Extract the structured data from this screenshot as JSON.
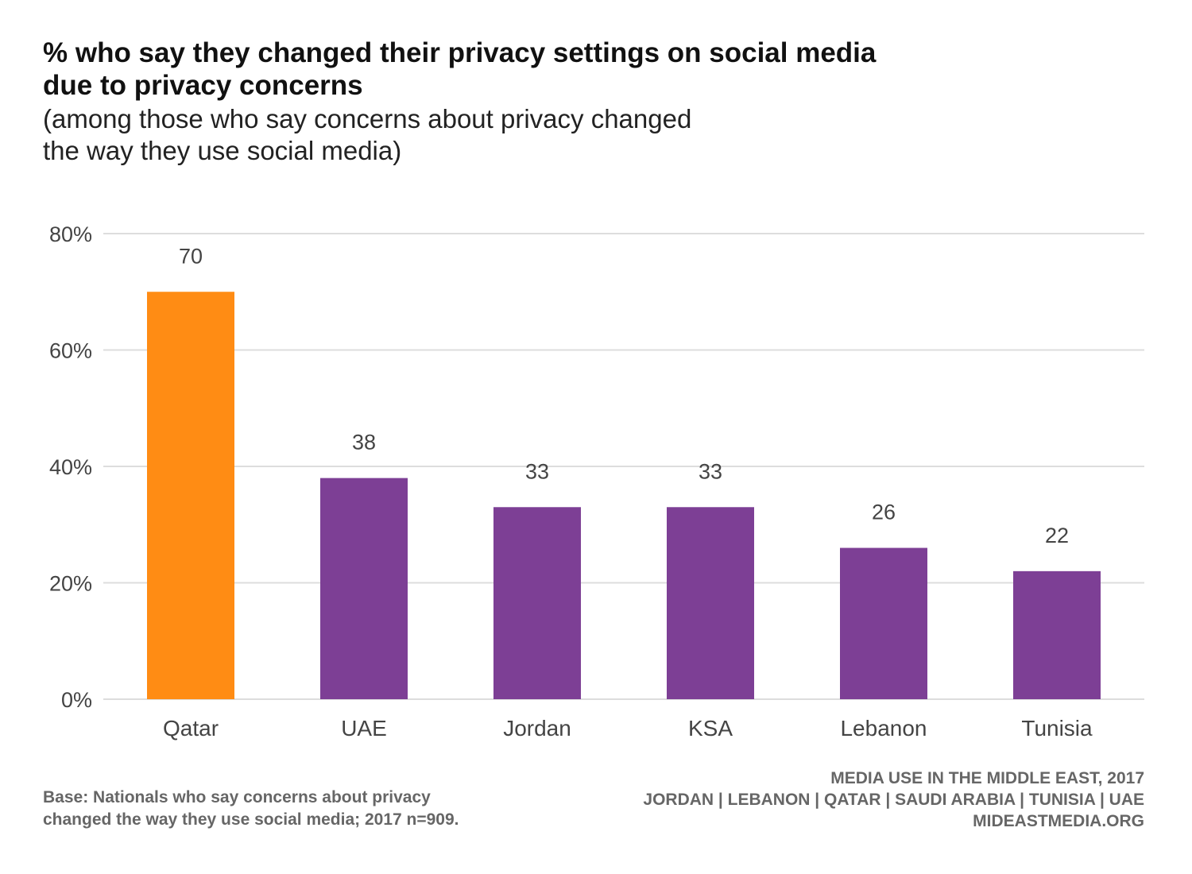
{
  "header": {
    "title_lines": [
      "% who say they changed their privacy settings on social media",
      "due to privacy concerns"
    ],
    "subtitle_lines": [
      "(among those who say concerns about privacy changed",
      "the way they use social media)"
    ]
  },
  "chart_data": {
    "type": "bar",
    "categories": [
      "Qatar",
      "UAE",
      "Jordan",
      "KSA",
      "Lebanon",
      "Tunisia"
    ],
    "values": [
      70,
      38,
      33,
      33,
      26,
      22
    ],
    "data_labels": [
      "70",
      "38",
      "33",
      "33",
      "26",
      "22"
    ],
    "ylim": [
      0,
      80
    ],
    "yticks": [
      0,
      20,
      40,
      60,
      80
    ],
    "ytick_labels": [
      "0%",
      "20%",
      "40%",
      "60%",
      "80%"
    ],
    "grid": true,
    "bar_colors": [
      "#FF8C14",
      "#7D3F95",
      "#7D3F95",
      "#7D3F95",
      "#7D3F95",
      "#7D3F95"
    ],
    "grid_color": "#DDDDDD"
  },
  "footer": {
    "base_lines": [
      "Base: Nationals who say concerns about privacy",
      "changed the way they use social media; 2017 n=909."
    ],
    "source_lines": [
      "MEDIA USE IN THE MIDDLE EAST, 2017",
      "JORDAN | LEBANON | QATAR | SAUDI ARABIA | TUNISIA | UAE",
      "MIDEASTMEDIA.ORG"
    ]
  }
}
